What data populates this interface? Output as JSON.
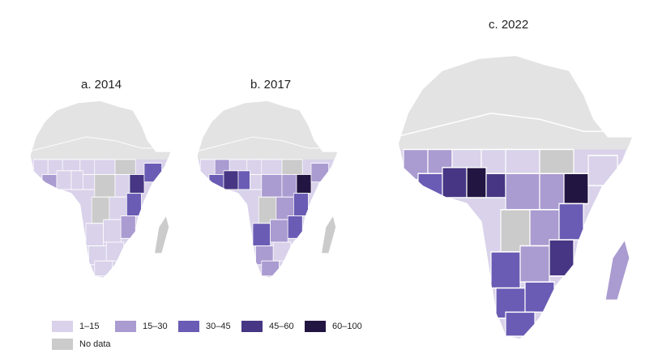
{
  "maps": [
    {
      "id": "a",
      "label": "a. 2014"
    },
    {
      "id": "b",
      "label": "b. 2017"
    },
    {
      "id": "c",
      "label": "c. 2022"
    }
  ],
  "legend": {
    "items": [
      {
        "label": "1–15",
        "color": "#d9d2ea"
      },
      {
        "label": "15–30",
        "color": "#aa9bd1"
      },
      {
        "label": "30–45",
        "color": "#6a5cb4"
      },
      {
        "label": "45–60",
        "color": "#463683"
      },
      {
        "label": "60–100",
        "color": "#221542"
      },
      {
        "label": "No data",
        "color": "#cbcbcb"
      }
    ]
  },
  "colors": {
    "north_africa_no_data": "#e3e3e3",
    "border": "#ffffff"
  }
}
